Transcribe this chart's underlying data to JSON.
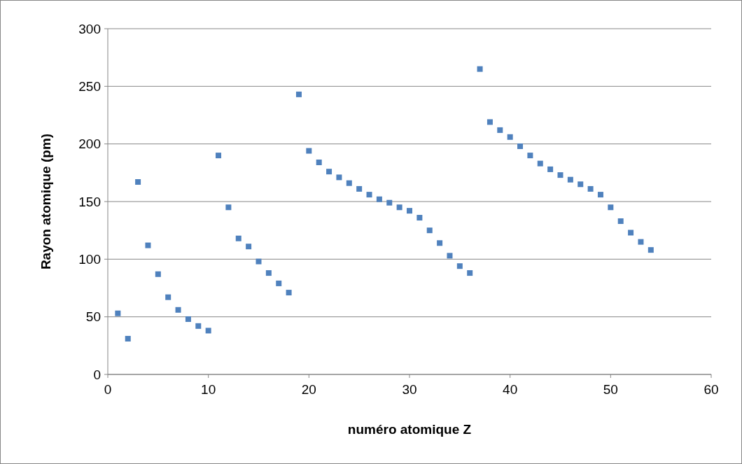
{
  "chart_data": {
    "type": "scatter",
    "xlabel": "numéro atomique Z",
    "ylabel": "Rayon atomique (pm)",
    "x": [
      1,
      2,
      3,
      4,
      5,
      6,
      7,
      8,
      9,
      10,
      11,
      12,
      13,
      14,
      15,
      16,
      17,
      18,
      19,
      20,
      21,
      22,
      23,
      24,
      25,
      26,
      27,
      28,
      29,
      30,
      31,
      32,
      33,
      34,
      35,
      36,
      37,
      38,
      39,
      40,
      41,
      42,
      43,
      44,
      45,
      46,
      47,
      48,
      49,
      50,
      51,
      52,
      53,
      54
    ],
    "series": [
      {
        "color": "#4f81bd",
        "values": [
          53,
          31,
          167,
          112,
          87,
          67,
          56,
          48,
          42,
          38,
          190,
          145,
          118,
          111,
          98,
          88,
          79,
          71,
          243,
          194,
          184,
          176,
          171,
          166,
          161,
          156,
          152,
          149,
          145,
          142,
          136,
          125,
          114,
          103,
          94,
          88,
          265,
          219,
          212,
          206,
          198,
          190,
          183,
          178,
          173,
          169,
          165,
          161,
          156,
          145,
          133,
          123,
          115,
          108
        ]
      }
    ],
    "xlim": [
      0,
      60
    ],
    "xticks": [
      0,
      10,
      20,
      30,
      40,
      50,
      60
    ],
    "ylim": [
      0,
      300
    ],
    "yticks": [
      0,
      50,
      100,
      150,
      200,
      250,
      300
    ],
    "grid": "y",
    "marker": "square"
  }
}
